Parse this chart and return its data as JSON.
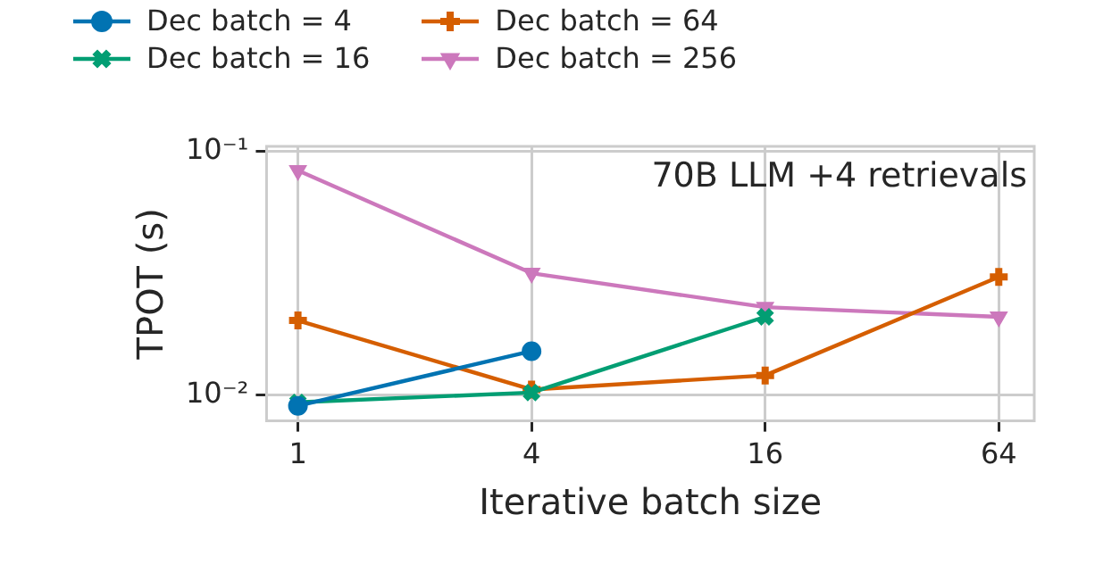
{
  "chart_data": {
    "type": "line",
    "annotations": [
      "70B LLM +4 retrievals"
    ],
    "xlabel": "Iterative batch size",
    "ylabel": "TPOT (s)",
    "x": [
      1,
      4,
      16,
      64
    ],
    "series": [
      {
        "name": "Dec batch = 4",
        "color": "#0173b2",
        "marker": "circle",
        "values": [
          0.009,
          0.0151,
          null,
          null
        ]
      },
      {
        "name": "Dec batch = 16",
        "color": "#029e73",
        "marker": "x",
        "values": [
          0.0093,
          0.0102,
          0.0209,
          null
        ]
      },
      {
        "name": "Dec batch = 64",
        "color": "#d55e00",
        "marker": "cross",
        "values": [
          0.0202,
          0.0105,
          0.012,
          0.0305
        ]
      },
      {
        "name": "Dec batch = 256",
        "color": "#cc78bc",
        "marker": "triangle-down",
        "values": [
          0.0835,
          0.0316,
          0.0229,
          0.0209
        ]
      }
    ],
    "log": "xy",
    "xlim": [
      0.83,
      79
    ],
    "xticks": [
      1,
      4,
      16,
      64
    ],
    "ylim": [
      0.0078,
      0.105
    ],
    "yticks": [
      {
        "value": 0.01,
        "label": "10⁻²"
      },
      {
        "value": 0.1,
        "label": "10⁻¹"
      }
    ],
    "grid": true,
    "legend": "top",
    "line_style": "solid"
  }
}
